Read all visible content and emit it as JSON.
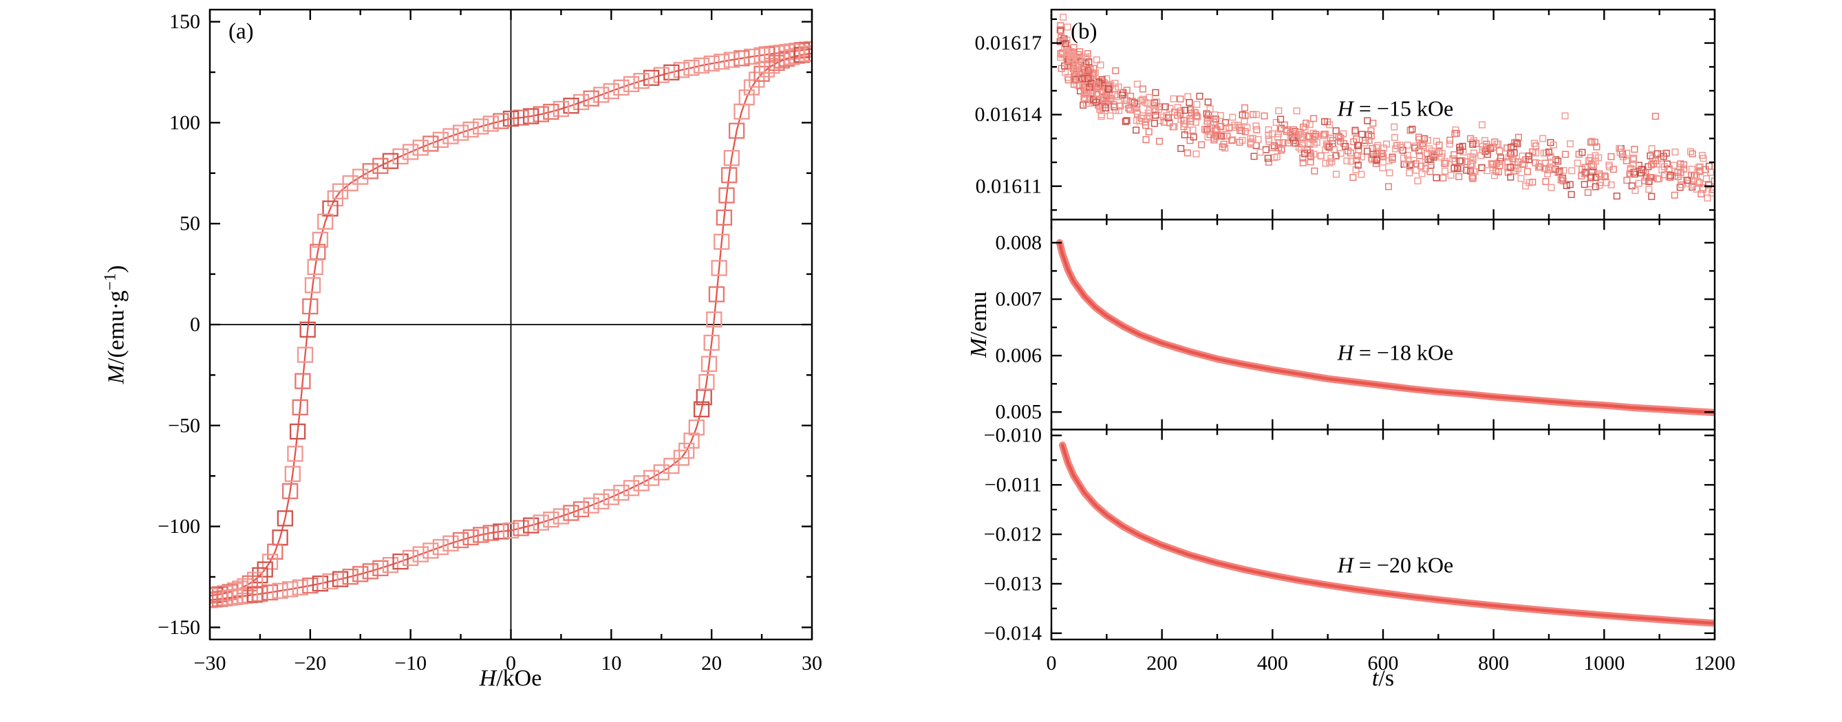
{
  "figure": {
    "panel_a_label": "(a)",
    "panel_b_label": "(b)",
    "colors": {
      "axis_black": "#000000",
      "line_red": "#e4544c",
      "marker_light": "#f29790",
      "marker_mid": "#e8766e",
      "marker_dark": "#cf544d",
      "band_outer": "#f2867f",
      "band_core": "#e8564e",
      "scatter_light": "#f39b94",
      "scatter_mid": "#ec7d75",
      "scatter_dark": "#c9534c"
    }
  },
  "chart_data": [
    {
      "id": "hysteresis-loop",
      "type": "line+scatter",
      "marker": "open-square",
      "xlabel": {
        "var": "H",
        "rest": "/kOe"
      },
      "ylabel": {
        "var": "M",
        "mid": "/(emu·g",
        "sup": "−1",
        "end": ")"
      },
      "xlim": [
        -30,
        30
      ],
      "ylim": [
        -156,
        156
      ],
      "xticks": {
        "values": [
          -30,
          -20,
          -10,
          0,
          10,
          20,
          30
        ],
        "labels": [
          "−30",
          "−20",
          "−10",
          "0",
          "10",
          "20",
          "30"
        ],
        "minor_step": 5
      },
      "yticks": {
        "values": [
          -150,
          -100,
          -50,
          0,
          50,
          100,
          150
        ],
        "labels": [
          "−150",
          "−100",
          "−50",
          "0",
          "50",
          "100",
          "150"
        ],
        "minor_step": 25
      },
      "zero_lines": true,
      "series": [
        {
          "name": "descending-branch",
          "x": [
            30,
            29.5,
            29,
            28.5,
            28,
            27.5,
            27,
            26.5,
            26,
            25.5,
            25,
            24,
            23,
            22,
            21,
            20,
            19,
            18,
            17,
            16,
            15,
            14,
            13,
            12,
            11,
            10,
            9,
            8,
            7,
            6,
            5,
            4,
            3,
            2,
            1,
            0,
            -1,
            -2,
            -3,
            -4,
            -5,
            -6,
            -7,
            -8,
            -9,
            -10,
            -11,
            -12,
            -13,
            -14,
            -15,
            -16,
            -17,
            -17.5,
            -18,
            -18.5,
            -19,
            -19.25,
            -19.5,
            -19.75,
            -20,
            -20.25,
            -20.5,
            -20.75,
            -21,
            -21.25,
            -21.5,
            -21.75,
            -22,
            -22.5,
            -23,
            -23.5,
            -24,
            -24.5,
            -25,
            -25.5,
            -26,
            -26.5,
            -27,
            -27.5,
            -28,
            -28.5,
            -29,
            -29.5,
            -30
          ],
          "y": [
            136.5,
            136.2,
            135.9,
            135.6,
            135.3,
            135,
            134.7,
            134.4,
            134.1,
            133.8,
            133.4,
            132.7,
            131.9,
            131.1,
            130.2,
            129.3,
            128.3,
            127.2,
            126.1,
            124.9,
            123.6,
            122.2,
            120.7,
            119.1,
            117.4,
            115.6,
            113.8,
            112,
            110.2,
            108.4,
            106.8,
            105.4,
            104.2,
            103.2,
            102.5,
            102,
            100.8,
            99.5,
            98.1,
            96.6,
            95,
            93.3,
            91.5,
            89.6,
            87.6,
            85.5,
            83.3,
            81,
            78.6,
            76,
            73.2,
            70,
            66,
            62.5,
            57.5,
            51,
            42,
            36,
            28.5,
            19.5,
            9,
            -2.5,
            -15,
            -28,
            -41,
            -53,
            -64,
            -74,
            -82.5,
            -96,
            -105.5,
            -112.5,
            -117.5,
            -121.3,
            -124.2,
            -126.4,
            -128.2,
            -129.6,
            -130.8,
            -131.7,
            -132.5,
            -133.1,
            -133.6,
            -134,
            -134.3
          ]
        },
        {
          "name": "ascending-branch",
          "x": [
            -30,
            -29.5,
            -29,
            -28.5,
            -28,
            -27.5,
            -27,
            -26.5,
            -26,
            -25.5,
            -25,
            -24,
            -23,
            -22,
            -21,
            -20,
            -19,
            -18,
            -17,
            -16,
            -15,
            -14,
            -13,
            -12,
            -11,
            -10,
            -9,
            -8,
            -7,
            -6,
            -5,
            -4,
            -3,
            -2,
            -1,
            0,
            1,
            2,
            3,
            4,
            5,
            6,
            7,
            8,
            9,
            10,
            11,
            12,
            13,
            14,
            15,
            16,
            17,
            17.5,
            18,
            18.5,
            19,
            19.25,
            19.5,
            19.75,
            20,
            20.25,
            20.5,
            20.75,
            21,
            21.25,
            21.5,
            21.75,
            22,
            22.5,
            23,
            23.5,
            24,
            24.5,
            25,
            25.5,
            26,
            26.5,
            27,
            27.5,
            28,
            28.5,
            29,
            29.5,
            30
          ],
          "y": [
            -136.5,
            -136.2,
            -135.9,
            -135.6,
            -135.3,
            -135,
            -134.7,
            -134.4,
            -134.1,
            -133.8,
            -133.4,
            -132.7,
            -131.9,
            -131.1,
            -130.2,
            -129.3,
            -128.3,
            -127.2,
            -126.1,
            -124.9,
            -123.6,
            -122.2,
            -120.7,
            -119.1,
            -117.4,
            -115.6,
            -113.8,
            -112,
            -110.2,
            -108.4,
            -106.8,
            -105.4,
            -104.2,
            -103.2,
            -102.5,
            -102,
            -100.8,
            -99.5,
            -98.1,
            -96.6,
            -95,
            -93.3,
            -91.5,
            -89.6,
            -87.6,
            -85.5,
            -83.3,
            -81,
            -78.6,
            -76,
            -73.2,
            -70,
            -66,
            -62.5,
            -57.5,
            -51,
            -42,
            -36,
            -28.5,
            -19.5,
            -9,
            2.5,
            15,
            28,
            41,
            53,
            64,
            74,
            82.5,
            96,
            105.5,
            112.5,
            117.5,
            121.3,
            124.2,
            126.4,
            128.2,
            129.6,
            130.8,
            131.7,
            132.5,
            133.1,
            133.6,
            134,
            134.3
          ]
        }
      ]
    },
    {
      "id": "relaxation-curves",
      "type": "line",
      "xlabel": {
        "var": "t",
        "rest": "/s"
      },
      "ylabel": {
        "var": "M",
        "rest": "/emu"
      },
      "xlim": [
        0,
        1200
      ],
      "xticks": {
        "values": [
          0,
          200,
          400,
          600,
          800,
          1000,
          1200
        ],
        "labels": [
          "0",
          "200",
          "400",
          "600",
          "800",
          "1000",
          "1200"
        ],
        "minor_step": 100
      },
      "panels": [
        {
          "name": "relaxation-at-minus-15-kOe",
          "annotation": {
            "var": "H",
            "text": " = −15 kOe"
          },
          "ylim": [
            0.016096,
            0.016184
          ],
          "yticks": {
            "values": [
              0.01611,
              0.01614,
              0.01617
            ],
            "labels": [
              "0.01611",
              "0.01614",
              "0.01617"
            ],
            "minor_step": 1e-05
          },
          "style": "noisy-scatter",
          "noise": {
            "sigma": 5.3e-06,
            "count": 900,
            "seed": 42
          },
          "base": {
            "t": [
              15,
              20,
              30,
              40,
              60,
              80,
              100,
              130,
              160,
              200,
              250,
              300,
              350,
              400,
              500,
              600,
              700,
              800,
              900,
              1000,
              1100,
              1200
            ],
            "M": [
              0.016174,
              0.0161702,
              0.0161647,
              0.0161609,
              0.0161554,
              0.0161516,
              0.0161486,
              0.0161451,
              0.0161423,
              0.0161393,
              0.0161363,
              0.0161339,
              0.0161318,
              0.01613,
              0.016127,
              0.0161246,
              0.0161225,
              0.0161207,
              0.0161192,
              0.0161177,
              0.0161165,
              0.0161153
            ]
          }
        },
        {
          "name": "relaxation-at-minus-18-kOe",
          "annotation": {
            "var": "H",
            "text": " = −18 kOe"
          },
          "ylim": [
            0.00469,
            0.00841
          ],
          "yticks": {
            "values": [
              0.005,
              0.006,
              0.007,
              0.008
            ],
            "labels": [
              "0.005",
              "0.006",
              "0.007",
              "0.008"
            ],
            "minor_step": 0.0005
          },
          "style": "thick-curve",
          "series": {
            "t": [
              15,
              20,
              30,
              40,
              60,
              80,
              100,
              130,
              160,
              200,
              250,
              300,
              350,
              400,
              450,
              500,
              550,
              600,
              650,
              700,
              750,
              800,
              850,
              900,
              950,
              1000,
              1050,
              1100,
              1150,
              1200
            ],
            "M": [
              0.008,
              0.0078,
              0.00752,
              0.00732,
              0.00705,
              0.00685,
              0.0067,
              0.00652,
              0.00637,
              0.00622,
              0.00607,
              0.00594,
              0.00584,
              0.00575,
              0.00567,
              0.00559,
              0.00553,
              0.00547,
              0.00541,
              0.00536,
              0.00532,
              0.00527,
              0.00523,
              0.00519,
              0.00515,
              0.00512,
              0.00508,
              0.00505,
              0.00502,
              0.00499
            ]
          }
        },
        {
          "name": "relaxation-at-minus-20-kOe",
          "annotation": {
            "var": "H",
            "text": " = −20 kOe"
          },
          "ylim": [
            -0.014127,
            -0.009881
          ],
          "yticks": {
            "values": [
              -0.01,
              -0.011,
              -0.012,
              -0.013,
              -0.014
            ],
            "labels": [
              "−0.010",
              "−0.011",
              "−0.012",
              "−0.013",
              "−0.014"
            ],
            "minor_step": 0.0005
          },
          "style": "thick-curve",
          "series": {
            "t": [
              20,
              30,
              40,
              60,
              80,
              100,
              130,
              160,
              200,
              250,
              300,
              350,
              400,
              450,
              500,
              550,
              600,
              650,
              700,
              750,
              800,
              850,
              900,
              950,
              1000,
              1050,
              1100,
              1150,
              1200
            ],
            "M": [
              -0.010197,
              -0.010553,
              -0.010807,
              -0.011163,
              -0.011416,
              -0.011612,
              -0.011844,
              -0.012026,
              -0.012222,
              -0.012419,
              -0.01258,
              -0.012715,
              -0.012832,
              -0.012936,
              -0.013029,
              -0.013113,
              -0.013189,
              -0.01326,
              -0.013325,
              -0.013386,
              -0.013443,
              -0.013496,
              -0.013546,
              -0.013593,
              -0.013639,
              -0.013682,
              -0.013723,
              -0.013762,
              -0.013799
            ]
          }
        }
      ]
    }
  ]
}
